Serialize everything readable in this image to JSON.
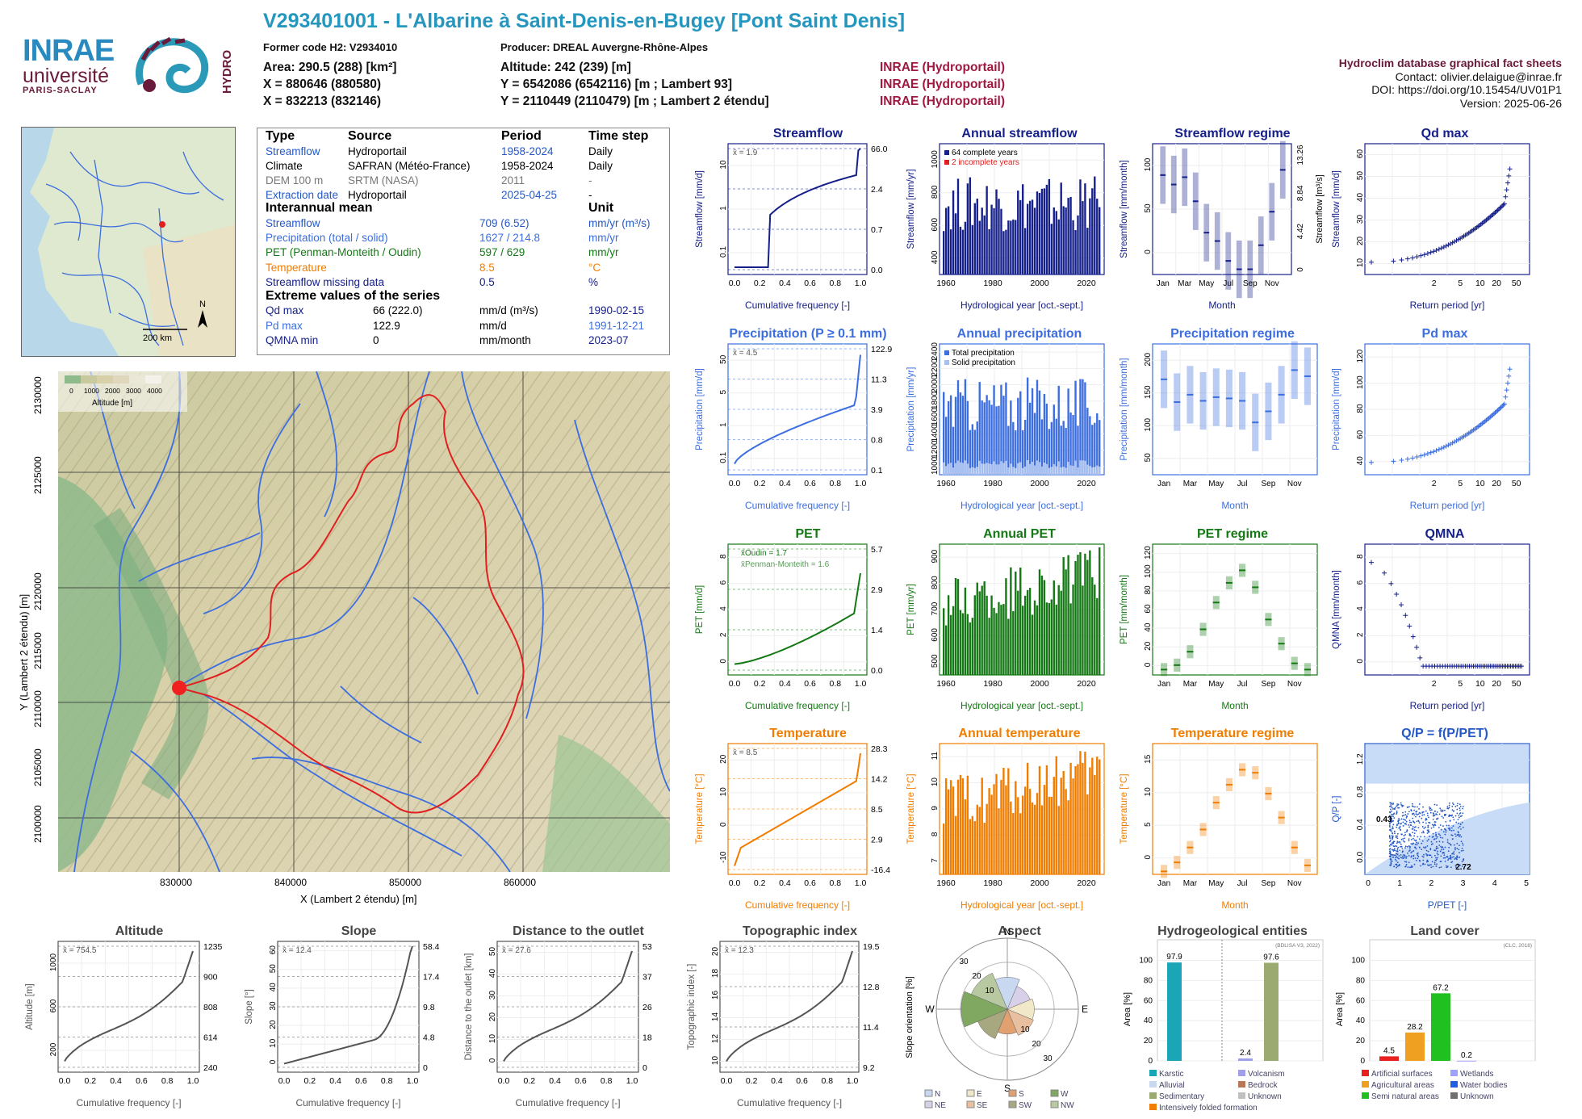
{
  "header": {
    "title": "V293401001 - L'Albarine à Saint-Denis-en-Bugey [Pont Saint Denis]",
    "former_code": "Former code H2: V2934010",
    "producer": "Producer: DREAL Auvergne-Rhône-Alpes",
    "area": "Area: 290.5 (288) [km²]",
    "x93": "X = 880646 (880580)",
    "x2": "X = 832213 (832146)",
    "altitude": "Altitude: 242 (239) [m]",
    "y93": "Y = 6542086 (6542116) [m ; Lambert 93]",
    "y2": "Y = 2110449 (2110479) [m ; Lambert 2 étendu]",
    "src1": "INRAE (Hydroportail)",
    "src2": "INRAE (Hydroportail)",
    "src3": "INRAE (Hydroportail)"
  },
  "logos": {
    "inrae": "INRAE",
    "universite": "université",
    "paris_saclay": "PARIS-SACLAY",
    "hydro": "HYDRO"
  },
  "right_info": {
    "line1": "Hydroclim database graphical fact sheets",
    "line2": "Contact: olivier.delaigue@inrae.fr",
    "line3": "DOI: https://doi.org/10.15454/UV01P1",
    "line4": "Version: 2025-06-26"
  },
  "info_table": {
    "headers": [
      "Type",
      "Source",
      "Period",
      "Time step"
    ],
    "rows": [
      {
        "type": "Streamflow",
        "source": "Hydroportail",
        "period": "1958-2024",
        "step": "Daily",
        "color": "#2458c8"
      },
      {
        "type": "Climate",
        "source": "SAFRAN (Météo-France)",
        "period": "1958-2024",
        "step": "Daily",
        "color": "#000000"
      },
      {
        "type": "DEM 100 m",
        "source": "SRTM (NASA)",
        "period": "2011",
        "step": "-",
        "color": "#777777"
      },
      {
        "type": "Extraction date",
        "source": "Hydroportail",
        "period": "2025-04-25",
        "step": "-",
        "color": "#2458c8"
      }
    ],
    "interannual_title": "Interannual mean",
    "unit_title": "Unit",
    "interannual": [
      {
        "label": "Streamflow",
        "value": "709 (6.52)",
        "unit": "mm/yr (m³/s)",
        "color": "#2458c8"
      },
      {
        "label": "Precipitation (total / solid)",
        "value": "1627 / 214.8",
        "unit": "mm/yr",
        "color": "#3c6ee0"
      },
      {
        "label": "PET (Penman-Monteith / Oudin)",
        "value": "597 / 629",
        "unit": "mm/yr",
        "color": "#147814"
      },
      {
        "label": "Temperature",
        "value": "8.5",
        "unit": "°C",
        "color": "#f07d00"
      },
      {
        "label": "Streamflow missing data",
        "value": "0.5",
        "unit": "%",
        "color": "#16208a"
      }
    ],
    "extreme_title": "Extreme values of the series",
    "extremes": [
      {
        "label": "Qd max",
        "value": "66 (222.0)",
        "unit": "mm/d (m³/s)",
        "date": "1990-02-15",
        "color": "#16208a"
      },
      {
        "label": "Pd max",
        "value": "122.9",
        "unit": "mm/d",
        "date": "1991-12-21",
        "color": "#3c6ee0"
      },
      {
        "label": "QMNA min",
        "value": "0",
        "unit": "mm/month",
        "date": "2023-07",
        "color": "#16208a"
      }
    ]
  },
  "minimap": {
    "scale": "200 km",
    "north": "N"
  },
  "bigmap": {
    "xlabel": "X (Lambert 2 étendu) [m]",
    "ylabel": "Y (Lambert 2 étendu) [m]",
    "xticks": [
      "830000",
      "840000",
      "850000",
      "860000"
    ],
    "yticks": [
      "2100000",
      "2105000",
      "2110000",
      "2115000",
      "2120000",
      "2125000",
      "2130000"
    ],
    "legend_title": "Altitude [m]",
    "legend_ticks": [
      "0",
      "1000",
      "2000",
      "3000",
      "4000"
    ]
  },
  "chart_data": [
    {
      "id": "streamflow_cdf",
      "type": "line",
      "title": "Streamflow",
      "xlabel": "Cumulative frequency [-]",
      "ylabel": "Streamflow [mm/d]",
      "mean_label": "x̄ = 1.9",
      "right_ticks": [
        "66.0",
        "2.4",
        "0.7",
        "0.0"
      ],
      "yticks": [
        "0.1",
        "1",
        "10"
      ],
      "color": "#16208a"
    },
    {
      "id": "annual_streamflow",
      "type": "bar",
      "title": "Annual streamflow",
      "xlabel": "Hydrological year [oct.-sept.]",
      "ylabel": "Streamflow [mm/yr]",
      "yticks": [
        "400",
        "600",
        "800",
        "1000"
      ],
      "legend": [
        "64 complete years",
        "2 incomplete years"
      ],
      "color": "#16208a"
    },
    {
      "id": "streamflow_regime",
      "type": "bar",
      "title": "Streamflow regime",
      "xlabel": "Month",
      "ylabel": "Streamflow [mm/month]",
      "yticks": [
        "0",
        "50",
        "100"
      ],
      "right_ticks": [
        "13.26",
        "8.84",
        "4.42",
        "0"
      ],
      "right_label": "Streamflow [m³/s]",
      "months": [
        "Jan",
        "Mar",
        "May",
        "Jul",
        "Sep",
        "Nov"
      ],
      "color": "#16208a",
      "values": [
        95,
        86,
        93,
        70,
        40,
        32,
        13,
        5,
        5,
        28,
        60,
        100
      ]
    },
    {
      "id": "qd_max",
      "type": "scatter",
      "title": "Qd max",
      "xlabel": "Return period [yr]",
      "ylabel": "Streamflow [mm/d]",
      "xticks": [
        "2",
        "5",
        "10",
        "20",
        "50"
      ],
      "yticks": [
        "10",
        "20",
        "30",
        "40",
        "50",
        "60"
      ],
      "color": "#16208a"
    },
    {
      "id": "precip_cdf",
      "type": "line",
      "title": "Precipitation (P ≥ 0.1 mm)",
      "xlabel": "Cumulative frequency [-]",
      "ylabel": "Precipitation [mm/d]",
      "mean_label": "x̄ = 4.5",
      "right_ticks": [
        "122.9",
        "11.3",
        "3.9",
        "0.8",
        "0.1"
      ],
      "yticks": [
        "0.1",
        "1",
        "5",
        "50"
      ],
      "color": "#3c6ee0"
    },
    {
      "id": "annual_precip",
      "type": "bar",
      "title": "Annual precipitation",
      "xlabel": "Hydrological year [oct.-sept.]",
      "ylabel": "Precipitation [mm/yr]",
      "yticks": [
        "1000",
        "1200",
        "1400",
        "1600",
        "1800",
        "2000",
        "2200",
        "2400"
      ],
      "legend": [
        "Total precipitation",
        "Solid precipitation"
      ],
      "color": "#3c6ee0"
    },
    {
      "id": "precip_regime",
      "type": "bar",
      "title": "Precipitation regime",
      "xlabel": "Month",
      "ylabel": "Precipitation [mm/month]",
      "yticks": [
        "50",
        "100",
        "150",
        "200"
      ],
      "months": [
        "Jan",
        "Mar",
        "May",
        "Jul",
        "Sep",
        "Nov"
      ],
      "color": "#3c6ee0",
      "values": [
        155,
        118,
        130,
        120,
        126,
        124,
        120,
        85,
        103,
        130,
        170,
        160
      ]
    },
    {
      "id": "pd_max",
      "type": "scatter",
      "title": "Pd max",
      "xlabel": "Return period [yr]",
      "ylabel": "Precipitation [mm/d]",
      "xticks": [
        "2",
        "5",
        "10",
        "20",
        "50"
      ],
      "yticks": [
        "40",
        "60",
        "80",
        "100",
        "120"
      ],
      "color": "#3c6ee0"
    },
    {
      "id": "pet_cdf",
      "type": "line",
      "title": "PET",
      "xlabel": "Cumulative frequency [-]",
      "ylabel": "PET [mm/d]",
      "mean_oudin": "x̄Oudin = 1.7",
      "mean_pm": "x̄Penman-Monteith = 1.6",
      "right_ticks": [
        "5.7",
        "2.9",
        "1.4",
        "0.0"
      ],
      "yticks": [
        "0",
        "2",
        "4",
        "6",
        "8"
      ],
      "color": "#147814"
    },
    {
      "id": "annual_pet",
      "type": "bar",
      "title": "Annual PET",
      "xlabel": "Hydrological year [oct.-sept.]",
      "ylabel": "PET [mm/yr]",
      "yticks": [
        "500",
        "600",
        "700",
        "800",
        "900"
      ],
      "color": "#147814"
    },
    {
      "id": "pet_regime",
      "type": "bar",
      "title": "PET regime",
      "xlabel": "Month",
      "ylabel": "PET [mm/month]",
      "yticks": [
        "0",
        "20",
        "40",
        "60",
        "80",
        "100",
        "120"
      ],
      "months": [
        "Jan",
        "Mar",
        "May",
        "Jul",
        "Sep",
        "Nov"
      ],
      "color": "#147814",
      "values": [
        6,
        11,
        26,
        51,
        81,
        103,
        117,
        98,
        62,
        35,
        13,
        6
      ]
    },
    {
      "id": "qmna",
      "type": "scatter",
      "title": "QMNA",
      "xlabel": "Return period [yr]",
      "ylabel": "QMNA [mm/month]",
      "xticks": [
        "2",
        "5",
        "10",
        "20",
        "50"
      ],
      "yticks": [
        "0",
        "2",
        "4",
        "6",
        "8"
      ],
      "color": "#16208a"
    },
    {
      "id": "temp_cdf",
      "type": "line",
      "title": "Temperature",
      "xlabel": "Cumulative frequency [-]",
      "ylabel": "Temperature [°C]",
      "mean_label": "x̄ = 8.5",
      "right_ticks": [
        "28.3",
        "14.2",
        "8.5",
        "2.9",
        "-16.4"
      ],
      "yticks": [
        "-10",
        "0",
        "10",
        "20"
      ],
      "color": "#f07d00"
    },
    {
      "id": "annual_temp",
      "type": "bar",
      "title": "Annual temperature",
      "xlabel": "Hydrological year [oct.-sept.]",
      "ylabel": "Temperature [°C]",
      "yticks": [
        "7",
        "8",
        "9",
        "10",
        "11"
      ],
      "color": "#f07d00"
    },
    {
      "id": "temp_regime",
      "type": "bar",
      "title": "Temperature regime",
      "xlabel": "Month",
      "ylabel": "Temperature [°C]",
      "yticks": [
        "0",
        "5",
        "10",
        "15"
      ],
      "months": [
        "Jan",
        "Mar",
        "May",
        "Jul",
        "Sep",
        "Nov"
      ],
      "color": "#f07d00",
      "values": [
        0.5,
        2,
        4.5,
        7.5,
        12,
        15,
        17.5,
        17,
        13.5,
        9.5,
        4.5,
        1.5
      ]
    },
    {
      "id": "qp_ppet",
      "type": "scatter",
      "title": "Q/P = f(P/PET)",
      "xlabel": "P/PET [-]",
      "ylabel": "Q/P [-]",
      "xticks": [
        "0",
        "1",
        "2",
        "3",
        "4",
        "5"
      ],
      "yticks": [
        "0.0",
        "0.4",
        "0.8",
        "1.2"
      ],
      "annotations": [
        "0.43",
        "2.72"
      ],
      "color": "#2458c8"
    },
    {
      "id": "altitude",
      "type": "line",
      "title": "Altitude",
      "xlabel": "Cumulative frequency [-]",
      "ylabel": "Altitude [m]",
      "mean_label": "x̄ = 754.5",
      "yticks": [
        "200",
        "600",
        "1000"
      ],
      "right_ticks": [
        "1235",
        "900",
        "808",
        "614",
        "240"
      ],
      "color": "#555"
    },
    {
      "id": "slope",
      "type": "line",
      "title": "Slope",
      "xlabel": "Cumulative frequency [-]",
      "ylabel": "Slope [°]",
      "mean_label": "x̄ = 12.4",
      "yticks": [
        "0",
        "10",
        "20",
        "30",
        "40",
        "50",
        "60"
      ],
      "right_ticks": [
        "58.4",
        "17.4",
        "9.8",
        "4.8",
        "0"
      ],
      "color": "#555"
    },
    {
      "id": "distance",
      "type": "line",
      "title": "Distance to the outlet",
      "xlabel": "Cumulative frequency [-]",
      "ylabel": "Distance to the outlet [km]",
      "mean_label": "x̄ = 27.6",
      "yticks": [
        "0",
        "10",
        "20",
        "30",
        "40",
        "50"
      ],
      "right_ticks": [
        "53",
        "37",
        "26",
        "18",
        "0"
      ],
      "color": "#555"
    },
    {
      "id": "topo_index",
      "type": "line",
      "title": "Topographic index",
      "xlabel": "Cumulative frequency [-]",
      "ylabel": "Topographic index [-]",
      "mean_label": "x̄ = 12.3",
      "yticks": [
        "10",
        "12",
        "14",
        "16",
        "18",
        "20"
      ],
      "right_ticks": [
        "19.5",
        "12.8",
        "11.4",
        "9.2"
      ],
      "color": "#555"
    },
    {
      "id": "aspect",
      "type": "pie",
      "title": "Aspect",
      "ylabel": "Slope orientation [%]",
      "directions": [
        "N",
        "E",
        "S",
        "W"
      ],
      "rings": [
        "10",
        "20",
        "30"
      ],
      "legend": [
        "N",
        "E",
        "S",
        "W",
        "NE",
        "SE",
        "SW",
        "NW"
      ]
    },
    {
      "id": "hydrogeo",
      "type": "bar",
      "title": "Hydrogeological entities",
      "ylabel": "Area [%]",
      "yticks": [
        "0",
        "20",
        "40",
        "60",
        "80",
        "100"
      ],
      "note": "(BDLISA V3, 2022)",
      "bars": [
        {
          "label": "Karstic",
          "value": 97.9,
          "color": "#1aa6b6"
        },
        {
          "label": "Volcanism",
          "value": 2.4,
          "color": "#a0a0e8"
        },
        {
          "label": "Sedimentary",
          "value": 97.6,
          "color": "#9aaa70"
        }
      ],
      "legend": [
        "Karstic",
        "Volcanism",
        "Alluvial",
        "Bedrock",
        "Sedimentary",
        "Unknown",
        "Intensively folded formation"
      ],
      "legend_colors": [
        "#1aa6b6",
        "#a0a0e8",
        "#c8d8f0",
        "#b87858",
        "#9aaa70",
        "#c0c0c0",
        "#f07d00"
      ],
      "value_labels": [
        "97.9",
        "2.4",
        "97.6"
      ]
    },
    {
      "id": "landcover",
      "type": "bar",
      "title": "Land cover",
      "ylabel": "Area [%]",
      "yticks": [
        "0",
        "20",
        "40",
        "60",
        "80",
        "100"
      ],
      "note": "(CLC, 2018)",
      "bars": [
        {
          "label": "Artificial surfaces",
          "value": 4.5,
          "color": "#e82020"
        },
        {
          "label": "Agricultural areas",
          "value": 28.2,
          "color": "#f0a020"
        },
        {
          "label": "Semi natural areas",
          "value": 67.2,
          "color": "#20c020"
        },
        {
          "label": "Wetlands",
          "value": 0.2,
          "color": "#a0a0ff"
        }
      ],
      "legend": [
        "Artificial surfaces",
        "Wetlands",
        "Agricultural areas",
        "Water bodies",
        "Semi natural areas",
        "Unknown"
      ],
      "legend_colors": [
        "#e82020",
        "#a0a0ff",
        "#f0a020",
        "#2060e0",
        "#20c020",
        "#707070"
      ],
      "value_labels": [
        "4.5",
        "28.2",
        "67.2",
        "0.2"
      ]
    }
  ]
}
